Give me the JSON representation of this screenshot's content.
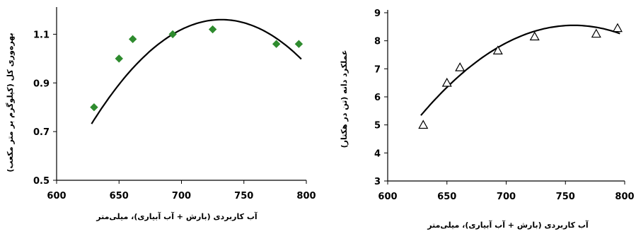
{
  "chart_data": [
    {
      "type": "scatter",
      "title": "",
      "xlabel": "آب کاربردی (بارش + آب آبیاری)، میلی‌متر",
      "ylabel": "بهره‌وری کل (کیلوگرم بر متر مکعب)",
      "xlim": [
        600,
        800
      ],
      "ylim": [
        0.5,
        1.2
      ],
      "xticks": [
        "600",
        "650",
        "700",
        "750",
        "800"
      ],
      "yticks": [
        "0.5",
        "0.7",
        "0.9",
        "1.1"
      ],
      "ytick_values": [
        0.5,
        0.7,
        0.9,
        1.1
      ],
      "marker": "diamond",
      "marker_color": "#2e8b2e",
      "points": [
        {
          "x": 630,
          "y": 0.8
        },
        {
          "x": 650,
          "y": 1.0
        },
        {
          "x": 661,
          "y": 1.08
        },
        {
          "x": 693,
          "y": 1.1
        },
        {
          "x": 725,
          "y": 1.12
        },
        {
          "x": 776,
          "y": 1.06
        },
        {
          "x": 794,
          "y": 1.06
        }
      ],
      "trendline": {
        "type": "polynomial-2",
        "from_x": 628,
        "to_x": 796,
        "a": -3.96e-05,
        "vertex_x": 732,
        "vertex_y": 1.16
      },
      "grid": false,
      "legend": "none"
    },
    {
      "type": "scatter",
      "title": "",
      "xlabel": "آب کاربردی (بارش + آب آبیاری)، میلی‌متر",
      "ylabel": "عملکرد دانه (تن در هکتار)",
      "xlim": [
        600,
        800
      ],
      "ylim": [
        3,
        9
      ],
      "xticks": [
        "600",
        "650",
        "700",
        "750",
        "800"
      ],
      "yticks": [
        "3",
        "4",
        "5",
        "6",
        "7",
        "8",
        "9"
      ],
      "ytick_values": [
        3,
        4,
        5,
        6,
        7,
        8,
        9
      ],
      "marker": "open-triangle",
      "marker_color": "#000000",
      "points": [
        {
          "x": 630,
          "y": 5.0
        },
        {
          "x": 650,
          "y": 6.5
        },
        {
          "x": 661,
          "y": 7.05
        },
        {
          "x": 693,
          "y": 7.65
        },
        {
          "x": 724,
          "y": 8.15
        },
        {
          "x": 776,
          "y": 8.25
        },
        {
          "x": 794,
          "y": 8.45
        }
      ],
      "trendline": {
        "type": "polynomial-2",
        "from_x": 628,
        "to_x": 796,
        "a": -0.000193,
        "vertex_x": 757,
        "vertex_y": 8.55
      },
      "grid": false,
      "legend": "none"
    }
  ]
}
